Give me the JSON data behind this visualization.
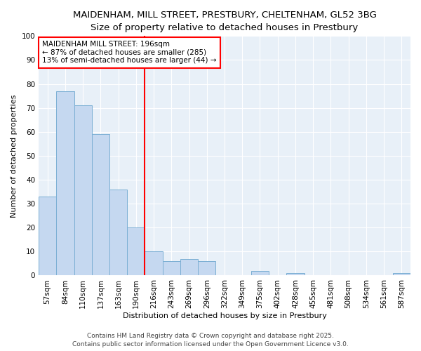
{
  "title_line1": "MAIDENHAM, MILL STREET, PRESTBURY, CHELTENHAM, GL52 3BG",
  "title_line2": "Size of property relative to detached houses in Prestbury",
  "xlabel": "Distribution of detached houses by size in Prestbury",
  "ylabel": "Number of detached properties",
  "categories": [
    "57sqm",
    "84sqm",
    "110sqm",
    "137sqm",
    "163sqm",
    "190sqm",
    "216sqm",
    "243sqm",
    "269sqm",
    "296sqm",
    "322sqm",
    "349sqm",
    "375sqm",
    "402sqm",
    "428sqm",
    "455sqm",
    "481sqm",
    "508sqm",
    "534sqm",
    "561sqm",
    "587sqm"
  ],
  "values": [
    33,
    77,
    71,
    59,
    36,
    20,
    10,
    6,
    7,
    6,
    0,
    0,
    2,
    0,
    1,
    0,
    0,
    0,
    0,
    0,
    1
  ],
  "bar_color": "#c5d8f0",
  "bar_edge_color": "#7bafd4",
  "red_line_index": 5,
  "annotation_text": "MAIDENHAM MILL STREET: 196sqm\n← 87% of detached houses are smaller (285)\n13% of semi-detached houses are larger (44) →",
  "annotation_box_color": "white",
  "annotation_box_edge": "red",
  "red_line_color": "red",
  "ylim": [
    0,
    100
  ],
  "yticks": [
    0,
    10,
    20,
    30,
    40,
    50,
    60,
    70,
    80,
    90,
    100
  ],
  "background_color": "#e8f0f8",
  "footer_line1": "Contains HM Land Registry data © Crown copyright and database right 2025.",
  "footer_line2": "Contains public sector information licensed under the Open Government Licence v3.0.",
  "title_fontsize": 9.5,
  "subtitle_fontsize": 8.5,
  "axis_label_fontsize": 8,
  "tick_fontsize": 7.5,
  "annotation_fontsize": 7.5,
  "footer_fontsize": 6.5
}
